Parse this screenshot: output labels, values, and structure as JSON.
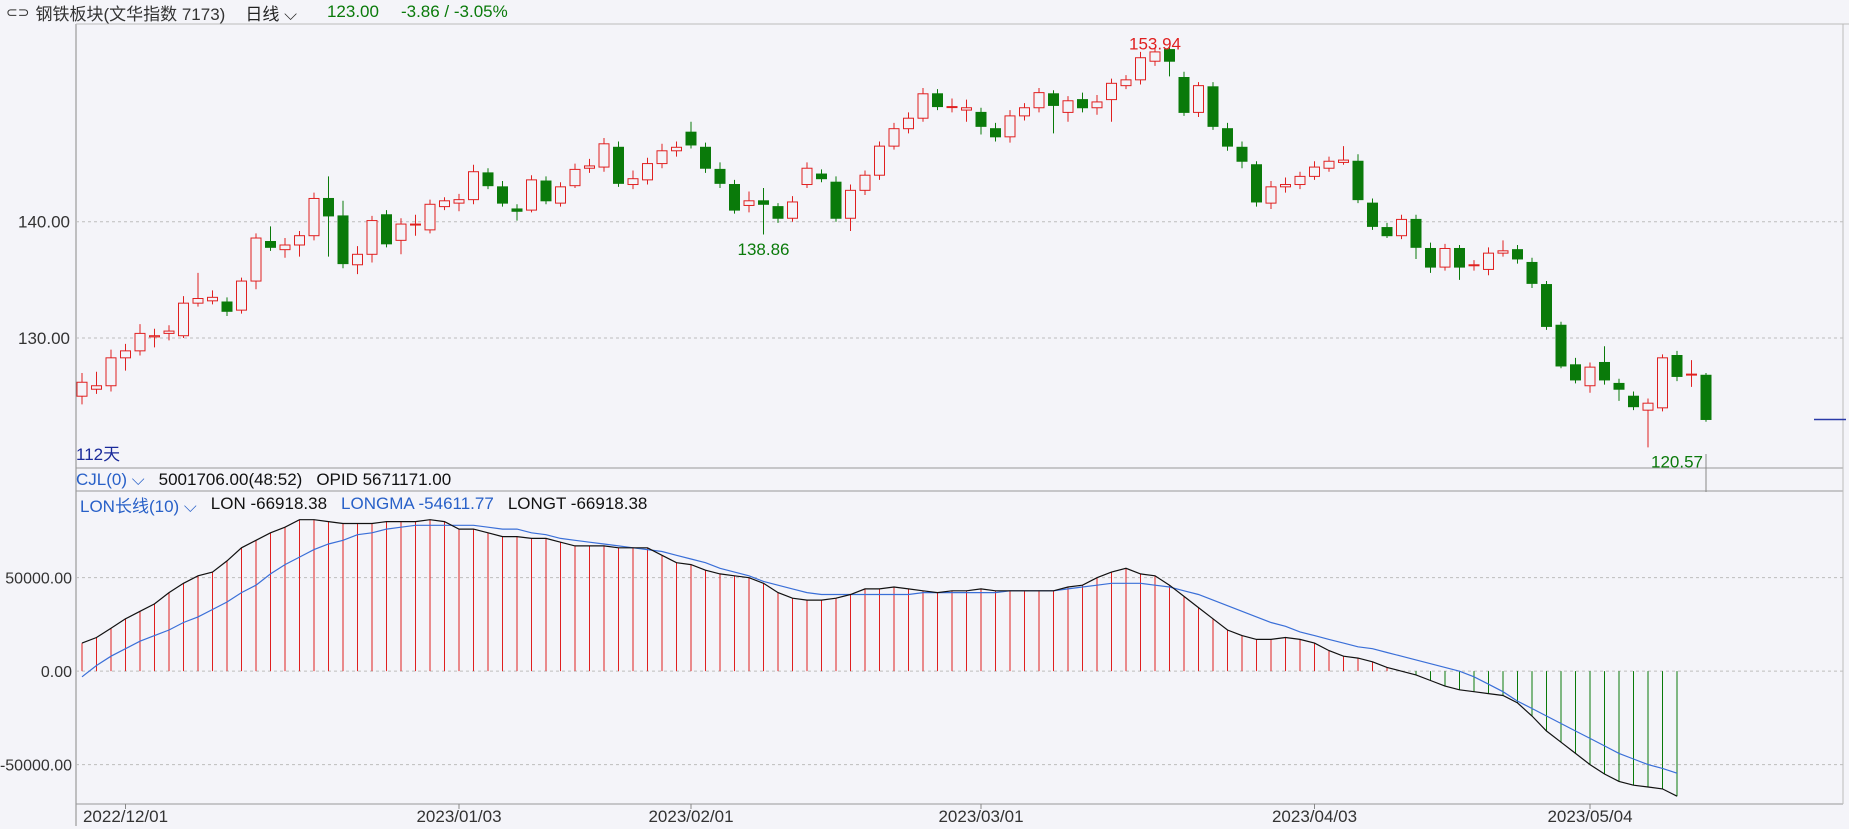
{
  "header": {
    "link_icon": "link-icon",
    "name": "钢铁板块(文华指数 7173)",
    "period": "日线",
    "price": "123.00",
    "change": "-3.86 / -3.05%"
  },
  "indicator_bar": {
    "cjl_label": "CJL(0)",
    "cjl_values": "5001706.00(48:52)",
    "opid_values": "OPID 5671171.00"
  },
  "lon_bar": {
    "label": "LON长线(10)",
    "lon": "LON -66918.38",
    "longma": "LONGMA -54611.77",
    "longt": "LONGT -66918.38"
  },
  "colors": {
    "up": "#e02020",
    "down": "#0a7a0a",
    "ma": "#3a6fd8",
    "line": "#111111",
    "bg": "#f4f4f9"
  },
  "chart_data": [
    {
      "type": "candlestick",
      "days_label": "112天",
      "yticks": [
        140,
        130
      ],
      "ytick_labels": [
        "140.00",
        "130.00"
      ],
      "ylim": [
        119,
        157
      ],
      "annotations": [
        {
          "text": "153.94",
          "index": 74,
          "value": 153.94,
          "kind": "high"
        },
        {
          "text": "138.86",
          "index": 47,
          "value": 138.86,
          "kind": "low"
        },
        {
          "text": "120.57",
          "index": 110,
          "value": 120.57,
          "kind": "low"
        }
      ],
      "xtick_labels": [
        {
          "text": "2022/12/01",
          "index": 3
        },
        {
          "text": "2023/01/03",
          "index": 26
        },
        {
          "text": "2023/02/01",
          "index": 42
        },
        {
          "text": "2023/03/01",
          "index": 62
        },
        {
          "text": "2023/04/03",
          "index": 85
        },
        {
          "text": "2023/05/04",
          "index": 104
        }
      ],
      "candles": [
        [
          125.0,
          126.2,
          127.0,
          124.3
        ],
        [
          125.6,
          125.9,
          127.1,
          125.2
        ],
        [
          125.9,
          128.3,
          129.0,
          125.4
        ],
        [
          128.3,
          128.9,
          129.5,
          127.2
        ],
        [
          128.9,
          130.4,
          131.2,
          128.5
        ],
        [
          130.1,
          130.2,
          130.8,
          129.2
        ],
        [
          130.4,
          130.6,
          131.1,
          129.8
        ],
        [
          130.2,
          133.0,
          133.6,
          130.0
        ],
        [
          133.0,
          133.4,
          135.6,
          132.7
        ],
        [
          133.2,
          133.5,
          134.1,
          132.9
        ],
        [
          133.1,
          132.3,
          133.5,
          131.9
        ],
        [
          132.4,
          134.9,
          135.2,
          132.1
        ],
        [
          134.9,
          138.6,
          139.0,
          134.2
        ],
        [
          138.3,
          137.8,
          139.6,
          137.5
        ],
        [
          137.6,
          138.0,
          138.6,
          136.9
        ],
        [
          138.0,
          138.8,
          139.2,
          137.0
        ],
        [
          138.8,
          142.0,
          142.5,
          138.4
        ],
        [
          142.0,
          140.5,
          143.9,
          137.0
        ],
        [
          140.5,
          136.4,
          141.8,
          136.0
        ],
        [
          136.3,
          137.2,
          137.9,
          135.5
        ],
        [
          137.2,
          140.1,
          140.5,
          136.5
        ],
        [
          140.6,
          138.1,
          141.0,
          137.8
        ],
        [
          138.4,
          139.8,
          140.3,
          137.2
        ],
        [
          139.8,
          139.8,
          140.6,
          138.8
        ],
        [
          139.3,
          141.5,
          141.9,
          139.0
        ],
        [
          141.3,
          141.8,
          142.1,
          141.0
        ],
        [
          141.6,
          141.9,
          142.4,
          140.9
        ],
        [
          141.9,
          144.3,
          144.9,
          141.5
        ],
        [
          144.2,
          143.1,
          144.6,
          142.8
        ],
        [
          143.0,
          141.6,
          143.5,
          141.3
        ],
        [
          141.1,
          140.9,
          141.5,
          140.1
        ],
        [
          141.0,
          143.6,
          144.0,
          140.8
        ],
        [
          143.5,
          141.8,
          143.9,
          141.5
        ],
        [
          141.6,
          143.0,
          143.4,
          141.3
        ],
        [
          143.1,
          144.5,
          145.0,
          142.9
        ],
        [
          144.6,
          144.8,
          145.4,
          144.2
        ],
        [
          144.7,
          146.7,
          147.2,
          144.3
        ],
        [
          146.4,
          143.3,
          146.9,
          143.0
        ],
        [
          143.2,
          143.7,
          144.4,
          142.8
        ],
        [
          143.6,
          145.0,
          145.5,
          143.2
        ],
        [
          145.0,
          146.1,
          146.7,
          144.6
        ],
        [
          146.1,
          146.4,
          146.9,
          145.6
        ],
        [
          147.7,
          146.6,
          148.6,
          146.3
        ],
        [
          146.4,
          144.6,
          146.8,
          144.2
        ],
        [
          144.5,
          143.3,
          145.1,
          142.9
        ],
        [
          143.2,
          141.0,
          143.6,
          140.7
        ],
        [
          141.4,
          141.8,
          142.6,
          140.8
        ],
        [
          141.8,
          141.5,
          142.9,
          138.9
        ],
        [
          141.3,
          140.3,
          141.6,
          139.9
        ],
        [
          140.3,
          141.7,
          142.2,
          140.0
        ],
        [
          143.2,
          144.6,
          145.1,
          142.9
        ],
        [
          144.1,
          143.7,
          144.5,
          143.4
        ],
        [
          143.4,
          140.3,
          143.9,
          140.0
        ],
        [
          140.3,
          142.7,
          143.2,
          139.2
        ],
        [
          142.7,
          144.0,
          144.4,
          142.3
        ],
        [
          144.0,
          146.5,
          146.9,
          143.6
        ],
        [
          146.5,
          148.0,
          148.5,
          146.2
        ],
        [
          148.0,
          148.9,
          149.4,
          147.6
        ],
        [
          148.9,
          151.0,
          151.5,
          148.6
        ],
        [
          151.0,
          149.9,
          151.4,
          149.6
        ],
        [
          149.9,
          149.9,
          150.6,
          149.4
        ],
        [
          149.6,
          149.8,
          150.5,
          148.6
        ],
        [
          149.4,
          148.2,
          149.8,
          147.5
        ],
        [
          148.0,
          147.3,
          148.5,
          146.9
        ],
        [
          147.3,
          149.1,
          149.6,
          146.8
        ],
        [
          149.1,
          149.8,
          150.2,
          148.7
        ],
        [
          149.8,
          151.1,
          151.5,
          149.4
        ],
        [
          151.0,
          150.0,
          151.3,
          147.6
        ],
        [
          149.4,
          150.4,
          150.8,
          148.6
        ],
        [
          150.5,
          149.8,
          151.1,
          149.4
        ],
        [
          149.8,
          150.3,
          150.9,
          149.2
        ],
        [
          150.5,
          151.9,
          152.3,
          148.6
        ],
        [
          151.7,
          152.2,
          152.6,
          151.4
        ],
        [
          152.2,
          154.1,
          154.6,
          151.8
        ],
        [
          153.8,
          154.6,
          154.9,
          153.4
        ],
        [
          154.8,
          153.8,
          155.0,
          152.5
        ],
        [
          152.4,
          149.4,
          152.9,
          149.1
        ],
        [
          149.4,
          151.7,
          152.0,
          149.0
        ],
        [
          151.6,
          148.2,
          152.0,
          147.9
        ],
        [
          148.0,
          146.5,
          148.5,
          146.1
        ],
        [
          146.4,
          145.2,
          146.9,
          144.6
        ],
        [
          144.9,
          141.7,
          145.2,
          141.3
        ],
        [
          141.6,
          143.0,
          143.5,
          141.1
        ],
        [
          143.0,
          143.2,
          143.8,
          142.5
        ],
        [
          143.2,
          143.9,
          144.3,
          142.8
        ],
        [
          143.9,
          144.7,
          145.2,
          143.6
        ],
        [
          144.6,
          145.2,
          145.6,
          144.3
        ],
        [
          145.1,
          145.3,
          146.5,
          144.9
        ],
        [
          145.2,
          141.9,
          145.8,
          141.6
        ],
        [
          141.6,
          139.6,
          142.0,
          139.3
        ],
        [
          139.5,
          138.8,
          139.9,
          138.6
        ],
        [
          138.8,
          140.2,
          140.6,
          138.5
        ],
        [
          140.2,
          137.8,
          140.6,
          136.8
        ],
        [
          137.7,
          136.1,
          138.2,
          135.6
        ],
        [
          136.1,
          137.7,
          138.1,
          135.8
        ],
        [
          137.7,
          136.1,
          138.0,
          135.0
        ],
        [
          136.3,
          136.3,
          136.7,
          135.8
        ],
        [
          135.9,
          137.3,
          137.8,
          135.4
        ],
        [
          137.3,
          137.5,
          138.4,
          137.0
        ],
        [
          137.6,
          136.8,
          138.0,
          136.4
        ],
        [
          136.5,
          134.7,
          136.9,
          134.3
        ],
        [
          134.6,
          131.0,
          134.9,
          130.7
        ],
        [
          131.1,
          127.6,
          131.4,
          127.4
        ],
        [
          127.7,
          126.4,
          128.3,
          126.1
        ],
        [
          125.9,
          127.5,
          127.9,
          125.3
        ],
        [
          127.9,
          126.4,
          129.3,
          126.0
        ],
        [
          126.1,
          125.6,
          126.5,
          124.6
        ],
        [
          125.0,
          124.1,
          125.4,
          123.8
        ],
        [
          123.8,
          124.4,
          124.8,
          120.6
        ],
        [
          124.0,
          128.3,
          128.6,
          123.7
        ],
        [
          128.5,
          126.7,
          128.9,
          126.3
        ],
        [
          126.9,
          126.9,
          128.1,
          125.8
        ],
        [
          126.8,
          123.0,
          127.0,
          122.8
        ]
      ]
    },
    {
      "type": "bar_line",
      "title": "LON长线(10)",
      "yticks": [
        50000,
        0,
        -50000
      ],
      "ytick_labels": [
        "50000.00",
        "0.00",
        "-50000.00"
      ],
      "ylim": [
        -70000,
        83000
      ],
      "series": [
        {
          "name": "LON",
          "values": [
            15000,
            18000,
            23000,
            28000,
            32000,
            36000,
            42000,
            47000,
            51000,
            53000,
            59000,
            66000,
            70000,
            74000,
            77000,
            81000,
            81000,
            80000,
            79000,
            79000,
            79000,
            80000,
            80000,
            80000,
            81000,
            80000,
            76000,
            76000,
            74000,
            72000,
            72000,
            71000,
            71000,
            69000,
            67000,
            67000,
            67000,
            66000,
            66000,
            66000,
            62000,
            58000,
            57000,
            54000,
            52000,
            51000,
            50000,
            47000,
            42000,
            39000,
            38000,
            38000,
            39000,
            41000,
            44000,
            44000,
            45000,
            44000,
            43000,
            42000,
            43000,
            43000,
            44000,
            43000,
            43000,
            43000,
            43000,
            43000,
            45000,
            46000,
            50000,
            53000,
            55000,
            52000,
            51000,
            46000,
            40000,
            34000,
            28000,
            22000,
            19000,
            17000,
            17000,
            18000,
            17000,
            15000,
            11000,
            8000,
            7000,
            5000,
            2000,
            0,
            -2000,
            -5000,
            -8000,
            -10000,
            -11000,
            -12000,
            -13000,
            -17000,
            -24000,
            -32000,
            -38000,
            -44000,
            -50000,
            -55000,
            -59000,
            -61000,
            -62000,
            -63000,
            -66918
          ]
        },
        {
          "name": "LONGMA",
          "values": [
            -3000,
            3000,
            8000,
            12000,
            16000,
            19000,
            22000,
            26000,
            29000,
            33000,
            37000,
            42000,
            46000,
            52000,
            57000,
            61000,
            65000,
            68000,
            70000,
            73000,
            74000,
            76000,
            77000,
            78000,
            78000,
            78000,
            78000,
            78000,
            77000,
            76000,
            76000,
            74000,
            73000,
            71000,
            70000,
            69000,
            68000,
            67000,
            66000,
            65000,
            64000,
            62000,
            60000,
            58000,
            55000,
            53000,
            51000,
            48000,
            46000,
            44000,
            42000,
            41000,
            41000,
            41000,
            41000,
            41000,
            41000,
            41000,
            42000,
            42000,
            42000,
            42000,
            42000,
            42000,
            43000,
            43000,
            43000,
            43000,
            44000,
            45000,
            46000,
            47000,
            47000,
            47000,
            46000,
            45000,
            43000,
            41000,
            38000,
            35000,
            32000,
            29000,
            26000,
            24000,
            21000,
            19000,
            17000,
            15000,
            13000,
            12000,
            10000,
            8000,
            6000,
            4000,
            2000,
            0,
            -3000,
            -7000,
            -11000,
            -16000,
            -20000,
            -24000,
            -28000,
            -32000,
            -36000,
            -40000,
            -44000,
            -47000,
            -50000,
            -52000,
            -54612
          ]
        }
      ]
    }
  ]
}
